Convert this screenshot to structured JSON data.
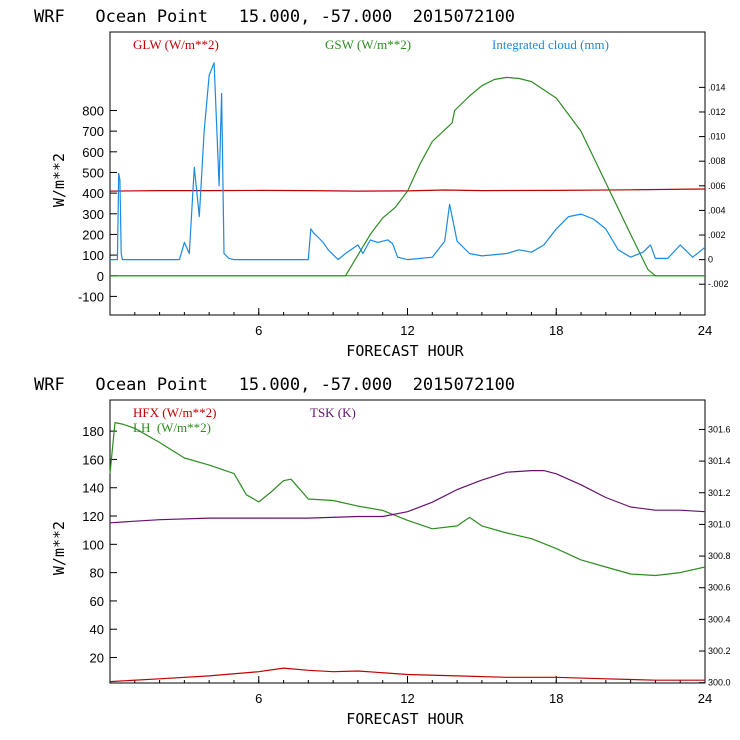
{
  "colors": {
    "red": "#c00000",
    "green": "#2e8b22",
    "blue": "#1a8be0",
    "purple": "#66116e"
  },
  "chart_data": [
    {
      "type": "line",
      "title": "WRF   Ocean Point   15.000, -57.000  2015072100",
      "xlabel": "FORECAST HOUR",
      "ylabel": "W/m**2",
      "xlim": [
        0,
        24
      ],
      "ylim": [
        -190,
        1180
      ],
      "y2lim": [
        -0.0045,
        0.0185
      ],
      "x_ticks": [
        "6",
        "12",
        "18",
        "24"
      ],
      "y_ticks": [
        "800",
        "700",
        "600",
        "500",
        "400",
        "300",
        "200",
        "100",
        "0",
        "-100"
      ],
      "y2_ticks": [
        ".014",
        ".012",
        ".010",
        ".008",
        ".006",
        ".004",
        ".002",
        "0",
        "-.002"
      ],
      "legend": {
        "glw": "GLW (W/m**2)",
        "gsw": "GSW (W/m**2)",
        "cloud": "Integrated cloud (mm)"
      },
      "series": [
        {
          "name": "GLW (W/m**2)",
          "axis": "left",
          "color": "red",
          "x": [
            0,
            2,
            4,
            6,
            8,
            10,
            12,
            13.5,
            15,
            18,
            21,
            24
          ],
          "y": [
            410,
            412,
            412,
            413,
            412,
            410,
            411,
            415,
            412,
            413,
            416,
            420
          ]
        },
        {
          "name": "GSW (W/m**2)",
          "axis": "left",
          "color": "green",
          "x": [
            0,
            9.5,
            10,
            10.5,
            11,
            11.5,
            12,
            12.5,
            13,
            13.8,
            13.9,
            14.5,
            15,
            15.5,
            16,
            16.5,
            17,
            18,
            19,
            20,
            21,
            21.7,
            22,
            24
          ],
          "y": [
            0,
            0,
            100,
            200,
            280,
            330,
            410,
            540,
            650,
            740,
            800,
            870,
            920,
            950,
            960,
            955,
            940,
            860,
            700,
            450,
            200,
            30,
            0,
            0
          ]
        },
        {
          "name": "Integrated cloud (mm)",
          "axis": "right",
          "color": "blue",
          "x": [
            0,
            0.3,
            0.35,
            0.4,
            0.45,
            0.5,
            2.8,
            3,
            3.2,
            3.4,
            3.6,
            3.8,
            4,
            4.2,
            4.4,
            4.5,
            4.6,
            4.8,
            5,
            7.5,
            8,
            8.1,
            8.2,
            8.4,
            8.6,
            8.8,
            9,
            9.2,
            9.5,
            10,
            10.2,
            10.5,
            10.8,
            11,
            11.2,
            11.4,
            11.6,
            12,
            13,
            13.5,
            13.7,
            14,
            14.5,
            15,
            16,
            16.5,
            17,
            17.5,
            18,
            18.5,
            19,
            19.5,
            20,
            20.5,
            21,
            21.5,
            21.8,
            22,
            22.5,
            23,
            23.5,
            24
          ],
          "y": [
            0,
            0,
            0.007,
            0.0065,
            0.0005,
            0,
            0,
            0.0014,
            0.0005,
            0.0075,
            0.0035,
            0.0105,
            0.015,
            0.016,
            0.006,
            0.0135,
            0.0005,
            0.0001,
            0,
            0,
            0,
            0.0025,
            0.0022,
            0.0018,
            0.0014,
            0.0008,
            0.0004,
            0,
            0.0005,
            0.0012,
            0.0005,
            0.0016,
            0.0014,
            0.0015,
            0.0016,
            0.0013,
            0.0002,
            0,
            0.0002,
            0.0015,
            0.0045,
            0.0015,
            0.0005,
            0.0003,
            0.0005,
            0.0008,
            0.0006,
            0.0012,
            0.0025,
            0.0035,
            0.0037,
            0.0033,
            0.0025,
            0.0008,
            0.0002,
            0.0006,
            0.0012,
            0.0001,
            0.0001,
            0.0012,
            0.0002,
            0.001
          ]
        }
      ]
    },
    {
      "type": "line",
      "title": "WRF   Ocean Point   15.000, -57.000  2015072100",
      "xlabel": "FORECAST HOUR",
      "ylabel": "W/m**2",
      "xlim": [
        0,
        24
      ],
      "ylim": [
        2,
        202
      ],
      "y2lim": [
        299.998,
        301.786
      ],
      "x_ticks": [
        "6",
        "12",
        "18",
        "24"
      ],
      "y_ticks": [
        "180",
        "160",
        "140",
        "120",
        "100",
        "80",
        "60",
        "40",
        "20"
      ],
      "y2_ticks": [
        "301.6",
        "301.4",
        "301.2",
        "301.0",
        "300.8",
        "300.6",
        "300.4",
        "300.2",
        "300.0"
      ],
      "legend": {
        "hfx": "HFX (W/m**2)",
        "lh": "LH  (W/m**2)",
        "tsk": "TSK (K)"
      },
      "series": [
        {
          "name": "HFX (W/m**2)",
          "axis": "left",
          "color": "red",
          "x": [
            0,
            2,
            4,
            6,
            7,
            8,
            9,
            10,
            12,
            14,
            16,
            18,
            20,
            22,
            24
          ],
          "y": [
            3,
            5,
            7,
            10,
            12.5,
            11,
            10,
            10.5,
            8,
            7,
            6,
            6,
            5,
            4,
            4
          ]
        },
        {
          "name": "LH  (W/m**2)",
          "axis": "left",
          "color": "green",
          "x": [
            0,
            0.2,
            0.5,
            1,
            2,
            3,
            4,
            5,
            5.5,
            6,
            6.5,
            7,
            7.3,
            7.6,
            8,
            9,
            10,
            11,
            12,
            13,
            14,
            14.5,
            15,
            16,
            17,
            18,
            19,
            20,
            21,
            22,
            23,
            24
          ],
          "y": [
            150,
            186,
            185,
            182,
            172,
            161,
            156,
            150,
            135,
            130,
            137,
            145,
            146,
            140,
            132,
            131,
            127,
            124,
            117,
            111,
            113,
            119,
            113,
            108,
            104,
            97,
            89,
            84,
            79,
            78,
            80,
            84
          ]
        },
        {
          "name": "TSK (K)",
          "axis": "right",
          "color": "purple",
          "x": [
            0,
            1,
            2,
            4,
            6,
            8,
            10,
            11,
            12,
            13,
            14,
            15,
            16,
            17,
            17.5,
            18,
            19,
            20,
            21,
            22,
            23,
            24
          ],
          "y": [
            301.01,
            301.02,
            301.03,
            301.04,
            301.04,
            301.04,
            301.05,
            301.05,
            301.08,
            301.14,
            301.22,
            301.28,
            301.33,
            301.34,
            301.34,
            301.32,
            301.25,
            301.17,
            301.11,
            301.09,
            301.09,
            301.08
          ]
        }
      ]
    }
  ]
}
